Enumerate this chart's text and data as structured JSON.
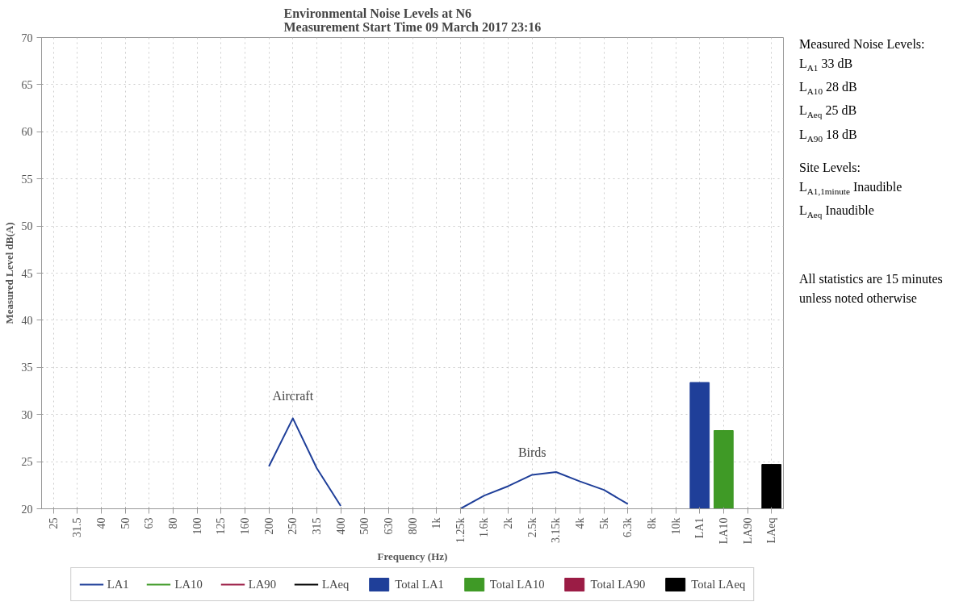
{
  "chart_data": {
    "type": "line",
    "title": "Environmental Noise Levels at N6\nMeasurement Start Time 09 March 2017 23:16",
    "xlabel": "Frequency (Hz)",
    "ylabel": "Measured Level dB(A)",
    "categories": [
      "25",
      "31.5",
      "40",
      "50",
      "63",
      "80",
      "100",
      "125",
      "160",
      "200",
      "250",
      "315",
      "400",
      "500",
      "630",
      "800",
      "1k",
      "1.25k",
      "1.6k",
      "2k",
      "2.5k",
      "3.15k",
      "4k",
      "5k",
      "6.3k",
      "8k",
      "10k",
      "LA1",
      "LA10",
      "LA90",
      "LAeq"
    ],
    "series": [
      {
        "name": "LA1",
        "color": "#1f3f99",
        "values": [
          null,
          null,
          null,
          null,
          null,
          null,
          null,
          null,
          null,
          24.5,
          29.6,
          24.3,
          20.3,
          null,
          null,
          null,
          null,
          20.0,
          21.4,
          22.4,
          23.6,
          23.9,
          22.9,
          22.0,
          20.5,
          null,
          null,
          null,
          null,
          null,
          null
        ]
      },
      {
        "name": "LA10",
        "color": "#3f9a26",
        "values": [
          null,
          null,
          null,
          null,
          null,
          null,
          null,
          null,
          null,
          null,
          null,
          null,
          null,
          null,
          null,
          null,
          null,
          null,
          null,
          null,
          null,
          null,
          null,
          null,
          null,
          null,
          null,
          null,
          null,
          null,
          null
        ]
      },
      {
        "name": "LA90",
        "color": "#9b1c45",
        "values": [
          null,
          null,
          null,
          null,
          null,
          null,
          null,
          null,
          null,
          null,
          null,
          null,
          null,
          null,
          null,
          null,
          null,
          null,
          null,
          null,
          null,
          null,
          null,
          null,
          null,
          null,
          null,
          null,
          null,
          null,
          null
        ]
      },
      {
        "name": "LAeq",
        "color": "#000000",
        "values": [
          null,
          null,
          null,
          null,
          null,
          null,
          null,
          null,
          null,
          null,
          null,
          null,
          null,
          null,
          null,
          null,
          null,
          null,
          null,
          null,
          null,
          null,
          null,
          null,
          null,
          null,
          null,
          null,
          null,
          null,
          null
        ]
      },
      {
        "name": "Total LA1",
        "type": "bar",
        "color": "#1f3f99",
        "values": [
          null,
          null,
          null,
          null,
          null,
          null,
          null,
          null,
          null,
          null,
          null,
          null,
          null,
          null,
          null,
          null,
          null,
          null,
          null,
          null,
          null,
          null,
          null,
          null,
          null,
          null,
          null,
          33.4,
          null,
          null,
          null
        ]
      },
      {
        "name": "Total LA10",
        "type": "bar",
        "color": "#3f9a26",
        "values": [
          null,
          null,
          null,
          null,
          null,
          null,
          null,
          null,
          null,
          null,
          null,
          null,
          null,
          null,
          null,
          null,
          null,
          null,
          null,
          null,
          null,
          null,
          null,
          null,
          null,
          null,
          null,
          null,
          28.3,
          null,
          null
        ]
      },
      {
        "name": "Total LA90",
        "type": "bar",
        "color": "#9b1c45",
        "values": [
          null,
          null,
          null,
          null,
          null,
          null,
          null,
          null,
          null,
          null,
          null,
          null,
          null,
          null,
          null,
          null,
          null,
          null,
          null,
          null,
          null,
          null,
          null,
          null,
          null,
          null,
          null,
          null,
          null,
          null,
          null
        ]
      },
      {
        "name": "Total LAeq",
        "type": "bar",
        "color": "#000000",
        "values": [
          null,
          null,
          null,
          null,
          null,
          null,
          null,
          null,
          null,
          null,
          null,
          null,
          null,
          null,
          null,
          null,
          null,
          null,
          null,
          null,
          null,
          null,
          null,
          null,
          null,
          null,
          null,
          null,
          null,
          null,
          24.7
        ]
      }
    ],
    "ylim": [
      20,
      70
    ],
    "yticks": [
      20,
      25,
      30,
      35,
      40,
      45,
      50,
      55,
      60,
      65,
      70
    ],
    "grid": true,
    "legend": "bottom",
    "annotations": [
      {
        "text": "Aircraft",
        "x": "250",
        "y": 29.6
      },
      {
        "text": "Birds",
        "x": "2.5k",
        "y": 23.6
      },
      "Measured Noise Levels:",
      "L$_{A1}$ 33 dB",
      "L$_{A10}$ 28 dB",
      "L$_{Aeq}$ 25 dB",
      "L$_{A90}$ 18 dB",
      "Site Levels:",
      "L$_{A1,1minute}$ Inaudible",
      "L$_{Aeq}$ Inaudible",
      "All statistics are 15 minutes",
      "unless noted otherwise"
    ]
  }
}
